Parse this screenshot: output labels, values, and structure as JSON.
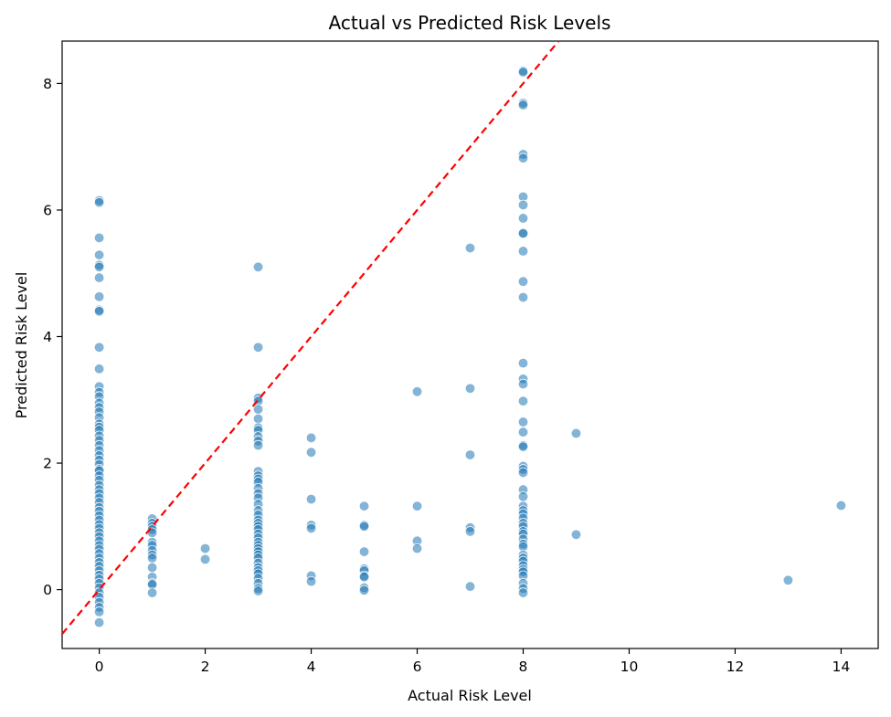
{
  "chart_data": {
    "type": "scatter",
    "title": "Actual vs Predicted Risk Levels",
    "xlabel": "Actual Risk Level",
    "ylabel": "Predicted Risk Level",
    "xlim": [
      -0.7,
      14.7
    ],
    "ylim": [
      -0.93,
      8.67
    ],
    "xticks": [
      0,
      2,
      4,
      6,
      8,
      10,
      12,
      14
    ],
    "yticks": [
      0,
      2,
      4,
      6,
      8
    ],
    "grid": false,
    "colors": {
      "points": "#1f77b4",
      "reference_line": "#ff0000"
    },
    "reference_line": {
      "style": "dashed",
      "slope": 1,
      "intercept": 0
    },
    "points": [
      [
        0,
        6.15
      ],
      [
        0,
        6.12
      ],
      [
        0,
        5.56
      ],
      [
        0,
        5.29
      ],
      [
        0,
        5.13
      ],
      [
        0,
        5.1
      ],
      [
        0,
        4.93
      ],
      [
        0,
        4.63
      ],
      [
        0,
        4.42
      ],
      [
        0,
        4.4
      ],
      [
        0,
        3.83
      ],
      [
        0,
        3.49
      ],
      [
        0,
        3.21
      ],
      [
        0,
        3.12
      ],
      [
        0,
        3.05
      ],
      [
        0,
        2.95
      ],
      [
        0,
        2.88
      ],
      [
        0,
        2.81
      ],
      [
        0,
        2.72
      ],
      [
        0,
        2.62
      ],
      [
        0,
        2.57
      ],
      [
        0,
        2.52
      ],
      [
        0,
        2.43
      ],
      [
        0,
        2.36
      ],
      [
        0,
        2.28
      ],
      [
        0,
        2.2
      ],
      [
        0,
        2.12
      ],
      [
        0,
        2.05
      ],
      [
        0,
        1.98
      ],
      [
        0,
        1.9
      ],
      [
        0,
        1.88
      ],
      [
        0,
        1.8
      ],
      [
        0,
        1.73
      ],
      [
        0,
        1.65
      ],
      [
        0,
        1.58
      ],
      [
        0,
        1.52
      ],
      [
        0,
        1.45
      ],
      [
        0,
        1.38
      ],
      [
        0,
        1.3
      ],
      [
        0,
        1.24
      ],
      [
        0,
        1.17
      ],
      [
        0,
        1.1
      ],
      [
        0,
        1.03
      ],
      [
        0,
        0.97
      ],
      [
        0,
        0.9
      ],
      [
        0,
        0.84
      ],
      [
        0,
        0.77
      ],
      [
        0,
        0.7
      ],
      [
        0,
        0.64
      ],
      [
        0,
        0.57
      ],
      [
        0,
        0.5
      ],
      [
        0,
        0.43
      ],
      [
        0,
        0.37
      ],
      [
        0,
        0.3
      ],
      [
        0,
        0.23
      ],
      [
        0,
        0.17
      ],
      [
        0,
        0.1
      ],
      [
        0,
        0.03
      ],
      [
        0,
        -0.05
      ],
      [
        0,
        -0.12
      ],
      [
        0,
        -0.2
      ],
      [
        0,
        -0.28
      ],
      [
        0,
        -0.35
      ],
      [
        0,
        -0.52
      ],
      [
        1,
        1.12
      ],
      [
        1,
        1.05
      ],
      [
        1,
        1.0
      ],
      [
        1,
        0.95
      ],
      [
        1,
        0.9
      ],
      [
        1,
        0.75
      ],
      [
        1,
        0.7
      ],
      [
        1,
        0.62
      ],
      [
        1,
        0.55
      ],
      [
        1,
        0.5
      ],
      [
        1,
        0.35
      ],
      [
        1,
        0.2
      ],
      [
        1,
        0.1
      ],
      [
        1,
        0.08
      ],
      [
        1,
        -0.05
      ],
      [
        2,
        0.65
      ],
      [
        2,
        0.48
      ],
      [
        3,
        5.1
      ],
      [
        3,
        3.83
      ],
      [
        3,
        3.03
      ],
      [
        3,
        2.98
      ],
      [
        3,
        2.85
      ],
      [
        3,
        2.7
      ],
      [
        3,
        2.56
      ],
      [
        3,
        2.52
      ],
      [
        3,
        2.42
      ],
      [
        3,
        2.35
      ],
      [
        3,
        2.28
      ],
      [
        3,
        1.87
      ],
      [
        3,
        1.8
      ],
      [
        3,
        1.75
      ],
      [
        3,
        1.7
      ],
      [
        3,
        1.6
      ],
      [
        3,
        1.52
      ],
      [
        3,
        1.45
      ],
      [
        3,
        1.35
      ],
      [
        3,
        1.25
      ],
      [
        3,
        1.18
      ],
      [
        3,
        1.1
      ],
      [
        3,
        1.05
      ],
      [
        3,
        1.0
      ],
      [
        3,
        0.95
      ],
      [
        3,
        0.88
      ],
      [
        3,
        0.82
      ],
      [
        3,
        0.75
      ],
      [
        3,
        0.7
      ],
      [
        3,
        0.65
      ],
      [
        3,
        0.6
      ],
      [
        3,
        0.55
      ],
      [
        3,
        0.5
      ],
      [
        3,
        0.42
      ],
      [
        3,
        0.35
      ],
      [
        3,
        0.3
      ],
      [
        3,
        0.25
      ],
      [
        3,
        0.18
      ],
      [
        3,
        0.1
      ],
      [
        3,
        0.02
      ],
      [
        3,
        -0.02
      ],
      [
        4,
        2.4
      ],
      [
        4,
        2.17
      ],
      [
        4,
        1.43
      ],
      [
        4,
        1.02
      ],
      [
        4,
        0.97
      ],
      [
        4,
        0.22
      ],
      [
        4,
        0.13
      ],
      [
        5,
        1.32
      ],
      [
        5,
        1.02
      ],
      [
        5,
        1.0
      ],
      [
        5,
        0.6
      ],
      [
        5,
        0.33
      ],
      [
        5,
        0.3
      ],
      [
        5,
        0.22
      ],
      [
        5,
        0.2
      ],
      [
        5,
        0.03
      ],
      [
        5,
        -0.01
      ],
      [
        6,
        3.13
      ],
      [
        6,
        1.32
      ],
      [
        6,
        0.77
      ],
      [
        6,
        0.65
      ],
      [
        7,
        5.4
      ],
      [
        7,
        3.18
      ],
      [
        7,
        2.13
      ],
      [
        7,
        0.98
      ],
      [
        7,
        0.92
      ],
      [
        7,
        0.05
      ],
      [
        8,
        8.2
      ],
      [
        8,
        8.18
      ],
      [
        8,
        7.69
      ],
      [
        8,
        7.66
      ],
      [
        8,
        6.88
      ],
      [
        8,
        6.82
      ],
      [
        8,
        6.21
      ],
      [
        8,
        6.08
      ],
      [
        8,
        5.87
      ],
      [
        8,
        5.64
      ],
      [
        8,
        5.63
      ],
      [
        8,
        5.35
      ],
      [
        8,
        4.87
      ],
      [
        8,
        4.62
      ],
      [
        8,
        3.58
      ],
      [
        8,
        3.33
      ],
      [
        8,
        3.25
      ],
      [
        8,
        2.98
      ],
      [
        8,
        2.65
      ],
      [
        8,
        2.49
      ],
      [
        8,
        2.28
      ],
      [
        8,
        2.26
      ],
      [
        8,
        1.95
      ],
      [
        8,
        1.9
      ],
      [
        8,
        1.85
      ],
      [
        8,
        1.58
      ],
      [
        8,
        1.47
      ],
      [
        8,
        1.32
      ],
      [
        8,
        1.25
      ],
      [
        8,
        1.2
      ],
      [
        8,
        1.13
      ],
      [
        8,
        1.05
      ],
      [
        8,
        1.0
      ],
      [
        8,
        0.92
      ],
      [
        8,
        0.88
      ],
      [
        8,
        0.8
      ],
      [
        8,
        0.72
      ],
      [
        8,
        0.68
      ],
      [
        8,
        0.55
      ],
      [
        8,
        0.5
      ],
      [
        8,
        0.45
      ],
      [
        8,
        0.38
      ],
      [
        8,
        0.32
      ],
      [
        8,
        0.28
      ],
      [
        8,
        0.22
      ],
      [
        8,
        0.1
      ],
      [
        8,
        0.02
      ],
      [
        8,
        -0.05
      ],
      [
        9,
        2.47
      ],
      [
        9,
        0.87
      ],
      [
        13,
        0.15
      ],
      [
        14,
        1.33
      ]
    ]
  }
}
